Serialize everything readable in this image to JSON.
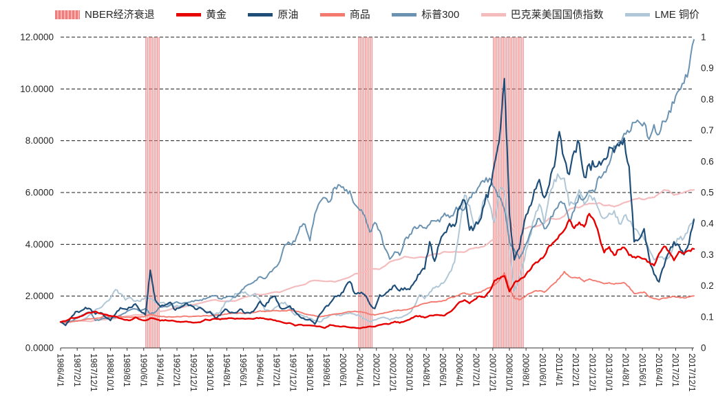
{
  "legend": [
    {
      "label": "NBER经济衰退",
      "color": "#ee7d7d",
      "color2": "#f8b2b2",
      "type": "band"
    },
    {
      "label": "黄金",
      "color": "#e60000",
      "type": "line"
    },
    {
      "label": "原油",
      "color": "#1f4e79",
      "type": "line"
    },
    {
      "label": "商品",
      "color": "#f47a6f",
      "type": "line"
    },
    {
      "label": "标普300",
      "color": "#6b93b1",
      "type": "line"
    },
    {
      "label": "巴克莱美国国债指数",
      "color": "#f5bcbe",
      "type": "line"
    },
    {
      "label": "LME 铜价",
      "color": "#afc7d6",
      "type": "line"
    }
  ],
  "chart_data": {
    "type": "line",
    "title": "",
    "legend_position": "top",
    "grid": "horizontal-dashed",
    "x_unit": "decimal_year",
    "x_start": 1986.25,
    "x_step": 0.25,
    "x_end": 2018.0,
    "x_tick_labels": [
      "1986/4/1",
      "1987/2/1",
      "1987/12/1",
      "1988/10/1",
      "1989/8/1",
      "1990/6/1",
      "1991/4/1",
      "1992/2/1",
      "1992/12/1",
      "1993/10/1",
      "1994/8/1",
      "1995/6/1",
      "1996/4/1",
      "1997/2/1",
      "1997/12/1",
      "1998/10/1",
      "1999/8/1",
      "2000/6/1",
      "2001/4/1",
      "2002/2/1",
      "2002/12/1",
      "2003/10/1",
      "2004/8/1",
      "2005/6/1",
      "2006/4/1",
      "2007/2/1",
      "2007/12/1",
      "2008/10/1",
      "2009/8/1",
      "2010/6/1",
      "2011/4/1",
      "2012/2/1",
      "2012/12/1",
      "2013/10/1",
      "2014/8/1",
      "2015/6/1",
      "2016/4/1",
      "2017/2/1",
      "2017/12/1"
    ],
    "left_axis": {
      "min": 0,
      "max": 12,
      "tick_step": 2,
      "tick_labels": [
        "0.0000",
        "2.0000",
        "4.0000",
        "6.0000",
        "8.0000",
        "10.0000",
        "12.0000"
      ]
    },
    "right_axis": {
      "min": 0,
      "max": 1,
      "tick_step": 0.1,
      "tick_labels": [
        "0",
        "0.1",
        "0.2",
        "0.3",
        "0.4",
        "0.5",
        "0.6",
        "0.7",
        "0.8",
        "0.9",
        "1"
      ],
      "series": "NBER经济衰退"
    },
    "recession_color": "#ef8080",
    "recessions": [
      {
        "name": "NBER经济衰退",
        "start": 1990.5,
        "end": 1991.25,
        "value": 1
      },
      {
        "name": "NBER经济衰退",
        "start": 2001.17,
        "end": 2001.92,
        "value": 1
      },
      {
        "name": "NBER经济衰退",
        "start": 2007.92,
        "end": 2009.5,
        "value": 1
      }
    ],
    "series": [
      {
        "name": "黄金",
        "axis": "left",
        "color": "#e60000",
        "width": 2.4,
        "z": 6,
        "values": [
          1.0,
          1.04,
          1.15,
          1.16,
          1.22,
          1.31,
          1.36,
          1.41,
          1.33,
          1.29,
          1.24,
          1.21,
          1.14,
          1.08,
          1.07,
          1.18,
          1.1,
          1.06,
          1.15,
          1.12,
          1.05,
          1.08,
          1.05,
          1.03,
          1.0,
          1.02,
          1.0,
          0.98,
          0.99,
          1.1,
          1.07,
          1.13,
          1.1,
          1.13,
          1.15,
          1.12,
          1.13,
          1.12,
          1.13,
          1.14,
          1.16,
          1.12,
          1.11,
          1.07,
          1.02,
          0.96,
          0.96,
          0.86,
          0.9,
          0.87,
          0.87,
          0.85,
          0.83,
          0.77,
          0.89,
          0.85,
          0.82,
          0.83,
          0.79,
          0.78,
          0.76,
          0.79,
          0.83,
          0.82,
          0.89,
          0.93,
          0.93,
          1.02,
          0.97,
          1.03,
          1.1,
          1.21,
          1.24,
          1.17,
          1.25,
          1.27,
          1.26,
          1.25,
          1.38,
          1.55,
          1.77,
          1.85,
          1.72,
          1.87,
          2.0,
          1.96,
          2.18,
          2.6,
          2.68,
          2.78,
          2.18,
          2.52,
          2.62,
          2.74,
          2.98,
          3.25,
          3.38,
          3.55,
          3.95,
          4.1,
          4.35,
          4.55,
          4.95,
          4.62,
          4.85,
          4.68,
          5.18,
          4.92,
          4.32,
          3.68,
          3.9,
          3.58,
          3.8,
          3.88,
          3.58,
          3.52,
          3.52,
          3.44,
          3.32,
          3.18,
          3.64,
          3.92,
          3.72,
          3.38,
          3.72,
          3.64,
          3.76,
          3.82
        ]
      },
      {
        "name": "原油",
        "axis": "left",
        "color": "#1f4e79",
        "width": 2.2,
        "z": 5,
        "values": [
          1.0,
          0.87,
          1.15,
          1.4,
          1.42,
          1.56,
          1.5,
          1.31,
          1.36,
          1.19,
          1.06,
          1.31,
          1.55,
          1.5,
          1.56,
          1.7,
          1.42,
          1.28,
          3.0,
          1.85,
          1.6,
          1.66,
          1.76,
          1.46,
          1.56,
          1.7,
          1.66,
          1.5,
          1.56,
          1.4,
          1.4,
          1.16,
          1.26,
          1.5,
          1.36,
          1.36,
          1.5,
          1.34,
          1.34,
          1.5,
          1.8,
          1.6,
          1.92,
          2.0,
          1.56,
          1.52,
          1.62,
          1.4,
          1.2,
          1.1,
          1.1,
          0.92,
          1.3,
          1.56,
          1.72,
          2.0,
          2.0,
          2.32,
          2.56,
          2.1,
          2.1,
          2.05,
          1.7,
          1.52,
          2.05,
          2.06,
          2.26,
          2.42,
          2.2,
          2.32,
          2.26,
          2.56,
          2.85,
          3.05,
          4.1,
          3.35,
          4.05,
          4.45,
          4.8,
          4.7,
          5.4,
          5.7,
          4.55,
          4.7,
          4.9,
          5.55,
          6.2,
          7.1,
          8.05,
          10.4,
          5.2,
          3.4,
          3.85,
          4.9,
          5.45,
          6.1,
          6.5,
          5.8,
          6.3,
          7.0,
          8.35,
          7.3,
          6.7,
          7.6,
          7.9,
          6.6,
          7.1,
          7.0,
          7.2,
          7.3,
          7.75,
          7.55,
          7.8,
          8.1,
          7.0,
          4.1,
          4.2,
          4.6,
          3.5,
          2.85,
          2.55,
          3.15,
          3.7,
          4.1,
          3.95,
          3.6,
          4.05,
          4.95
        ]
      },
      {
        "name": "商品",
        "axis": "left",
        "color": "#f47a6f",
        "width": 1.9,
        "z": 4,
        "values": [
          1.0,
          0.97,
          1.0,
          1.03,
          1.05,
          1.1,
          1.12,
          1.14,
          1.16,
          1.25,
          1.2,
          1.22,
          1.22,
          1.18,
          1.18,
          1.2,
          1.19,
          1.22,
          1.3,
          1.25,
          1.22,
          1.2,
          1.2,
          1.2,
          1.2,
          1.23,
          1.21,
          1.22,
          1.22,
          1.24,
          1.24,
          1.26,
          1.27,
          1.31,
          1.33,
          1.34,
          1.35,
          1.33,
          1.34,
          1.37,
          1.43,
          1.4,
          1.42,
          1.44,
          1.42,
          1.43,
          1.46,
          1.43,
          1.38,
          1.31,
          1.28,
          1.24,
          1.2,
          1.24,
          1.28,
          1.31,
          1.33,
          1.37,
          1.4,
          1.42,
          1.4,
          1.37,
          1.3,
          1.27,
          1.32,
          1.36,
          1.4,
          1.45,
          1.45,
          1.47,
          1.51,
          1.59,
          1.66,
          1.72,
          1.76,
          1.78,
          1.8,
          1.83,
          1.93,
          1.97,
          2.06,
          2.12,
          2.06,
          2.11,
          2.15,
          2.23,
          2.32,
          2.44,
          2.62,
          2.9,
          2.3,
          1.92,
          1.86,
          1.96,
          2.1,
          2.19,
          2.21,
          2.15,
          2.32,
          2.5,
          2.68,
          2.95,
          2.76,
          2.72,
          2.72,
          2.56,
          2.66,
          2.6,
          2.56,
          2.48,
          2.52,
          2.46,
          2.49,
          2.52,
          2.36,
          2.1,
          2.13,
          2.16,
          1.98,
          1.9,
          1.86,
          1.93,
          1.96,
          1.99,
          1.96,
          1.93,
          1.97,
          2.01
        ]
      },
      {
        "name": "标普300",
        "axis": "left",
        "color": "#6b93b1",
        "width": 2.0,
        "z": 3,
        "values": [
          1.0,
          0.99,
          1.02,
          1.14,
          1.22,
          1.33,
          1.37,
          1.06,
          1.1,
          1.15,
          1.18,
          1.17,
          1.26,
          1.35,
          1.47,
          1.5,
          1.43,
          1.52,
          1.3,
          1.39,
          1.58,
          1.6,
          1.65,
          1.76,
          1.72,
          1.75,
          1.77,
          1.84,
          1.85,
          1.89,
          1.97,
          2.02,
          1.9,
          1.94,
          1.99,
          1.95,
          2.14,
          2.37,
          2.46,
          2.59,
          2.75,
          2.68,
          2.94,
          3.11,
          3.36,
          3.99,
          4.03,
          4.11,
          4.68,
          4.77,
          4.13,
          5.18,
          5.64,
          5.8,
          5.65,
          6.2,
          6.28,
          6.07,
          6.06,
          5.54,
          5.32,
          5.11,
          4.48,
          4.84,
          4.52,
          3.85,
          3.43,
          3.71,
          3.58,
          4.18,
          4.38,
          4.68,
          4.74,
          4.64,
          4.77,
          4.91,
          4.87,
          5.2,
          5.03,
          5.26,
          5.47,
          5.36,
          5.81,
          5.98,
          6.26,
          6.4,
          6.55,
          6.19,
          5.84,
          5.35,
          4.09,
          3.78,
          3.45,
          3.87,
          4.35,
          4.7,
          5.0,
          4.6,
          4.82,
          5.3,
          5.6,
          5.58,
          4.9,
          5.3,
          5.9,
          5.75,
          6.07,
          6.01,
          6.62,
          6.8,
          7.1,
          7.8,
          7.95,
          8.28,
          8.32,
          8.7,
          8.72,
          8.7,
          8.05,
          8.62,
          8.25,
          8.75,
          9.15,
          9.45,
          9.95,
          10.22,
          10.8,
          11.9
        ]
      },
      {
        "name": "巴克莱美国国债指数",
        "axis": "left",
        "color": "#f5bcbe",
        "width": 2.2,
        "z": 1,
        "values": [
          1.0,
          1.01,
          1.03,
          1.06,
          1.05,
          1.04,
          1.02,
          1.07,
          1.09,
          1.1,
          1.12,
          1.14,
          1.16,
          1.22,
          1.24,
          1.28,
          1.27,
          1.3,
          1.32,
          1.38,
          1.41,
          1.43,
          1.49,
          1.56,
          1.55,
          1.6,
          1.66,
          1.68,
          1.73,
          1.78,
          1.83,
          1.86,
          1.81,
          1.8,
          1.81,
          1.81,
          1.89,
          1.97,
          2.0,
          2.09,
          2.05,
          2.07,
          2.12,
          2.16,
          2.15,
          2.23,
          2.3,
          2.37,
          2.41,
          2.45,
          2.57,
          2.61,
          2.59,
          2.57,
          2.58,
          2.55,
          2.61,
          2.67,
          2.74,
          2.86,
          2.88,
          2.94,
          3.05,
          3.05,
          3.04,
          3.16,
          3.32,
          3.39,
          3.43,
          3.53,
          3.49,
          3.47,
          3.51,
          3.49,
          3.58,
          3.63,
          3.63,
          3.72,
          3.7,
          3.72,
          3.7,
          3.7,
          3.82,
          3.86,
          3.88,
          3.93,
          4.08,
          4.23,
          4.34,
          4.34,
          4.38,
          4.73,
          4.62,
          4.6,
          4.68,
          4.67,
          4.72,
          4.83,
          5.01,
          4.98,
          4.98,
          5.09,
          5.35,
          5.43,
          5.42,
          5.53,
          5.58,
          5.57,
          5.6,
          5.5,
          5.52,
          5.45,
          5.52,
          5.61,
          5.66,
          5.74,
          5.79,
          5.73,
          5.8,
          5.81,
          5.96,
          6.1,
          6.07,
          5.9,
          5.95,
          6.01,
          6.08,
          6.1
        ]
      },
      {
        "name": "LME 铜价",
        "axis": "left",
        "color": "#afc7d6",
        "width": 2.0,
        "z": 2,
        "values": [
          1.0,
          0.98,
          1.0,
          1.05,
          1.06,
          1.15,
          1.3,
          1.48,
          1.55,
          1.75,
          1.92,
          2.25,
          2.1,
          1.85,
          1.95,
          1.8,
          1.8,
          1.95,
          1.9,
          1.75,
          1.75,
          1.7,
          1.7,
          1.6,
          1.62,
          1.65,
          1.63,
          1.65,
          1.55,
          1.4,
          1.35,
          1.3,
          1.38,
          1.75,
          1.82,
          2.1,
          2.1,
          2.16,
          2.0,
          2.1,
          1.85,
          1.45,
          1.42,
          1.56,
          1.7,
          1.76,
          1.5,
          1.26,
          1.3,
          1.2,
          1.15,
          1.06,
          1.0,
          1.15,
          1.25,
          1.3,
          1.25,
          1.31,
          1.35,
          1.3,
          1.23,
          1.12,
          1.02,
          1.08,
          1.15,
          1.17,
          1.08,
          1.15,
          1.18,
          1.25,
          1.36,
          1.62,
          2.05,
          1.9,
          2.15,
          2.32,
          2.4,
          2.55,
          2.92,
          3.32,
          4.6,
          5.9,
          5.5,
          4.6,
          5.05,
          5.75,
          5.55,
          4.85,
          6.1,
          6.0,
          4.0,
          2.2,
          2.7,
          3.4,
          4.25,
          5.0,
          5.55,
          4.8,
          5.9,
          6.5,
          6.6,
          6.55,
          5.5,
          5.55,
          6.1,
          5.55,
          5.9,
          5.8,
          5.3,
          5.0,
          5.2,
          5.3,
          4.8,
          5.1,
          4.9,
          4.6,
          4.4,
          4.2,
          3.8,
          3.4,
          3.5,
          3.42,
          3.5,
          4.0,
          4.2,
          4.25,
          4.7,
          5.0
        ]
      }
    ]
  }
}
